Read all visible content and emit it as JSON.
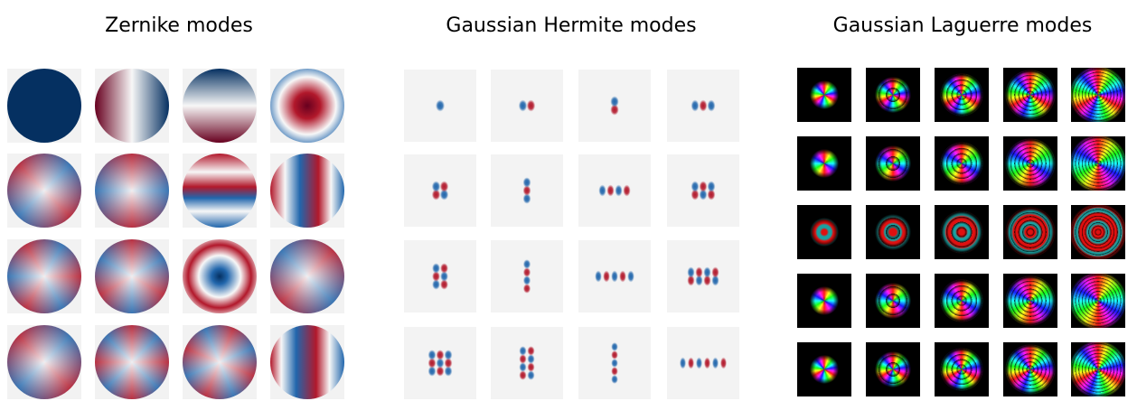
{
  "panels": [
    {
      "title": "Zernike modes"
    },
    {
      "title": "Gaussian Hermite modes"
    },
    {
      "title": "Gaussian Laguerre modes"
    }
  ]
}
